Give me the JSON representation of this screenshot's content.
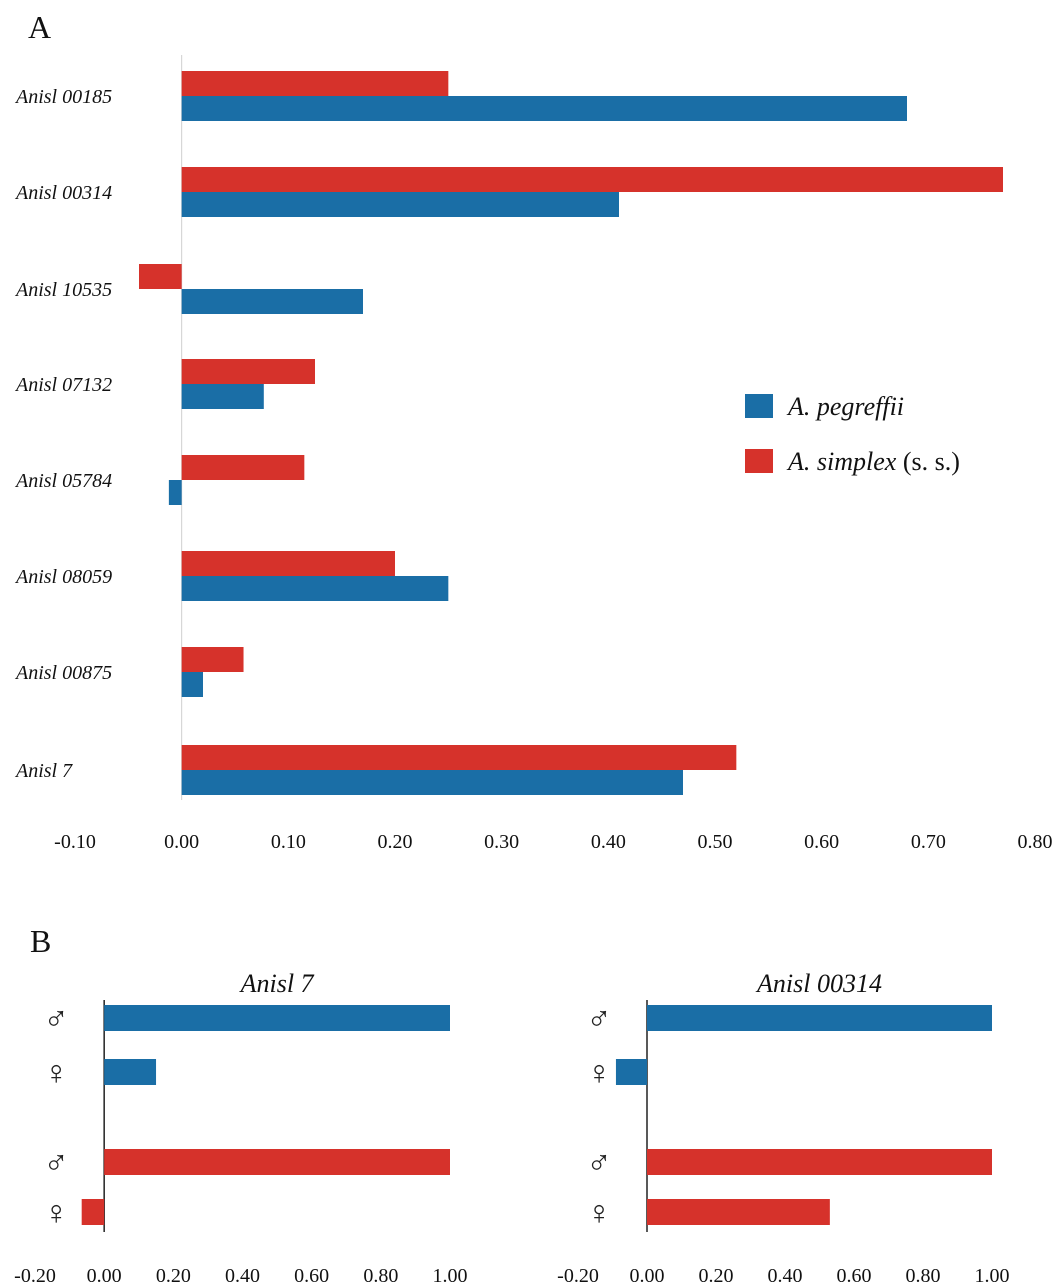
{
  "colors": {
    "pegreffii": "#1a6ea6",
    "simplex": "#d6322b",
    "axis": "#222222"
  },
  "panel_a_letter": "A",
  "panel_b_letter": "B",
  "legend": [
    {
      "series": "A. pegreffii",
      "italic": "A. pegreffii",
      "plain": "",
      "color": "#1a6ea6"
    },
    {
      "series": "A. simplex (s. s.)",
      "italic": "A. simplex",
      "plain": " (s. s.)",
      "color": "#d6322b"
    }
  ],
  "chart_data": [
    {
      "type": "bar",
      "orientation": "horizontal",
      "panel": "A",
      "categories": [
        "Anisl 00185",
        "Anisl 00314",
        "Anisl 10535",
        "Anisl 07132",
        "Anisl 05784",
        "Anisl 08059",
        "Anisl 00875",
        "Anisl 7"
      ],
      "series": [
        {
          "name": "A. simplex (s. s.)",
          "values": [
            0.25,
            0.77,
            -0.04,
            0.125,
            0.115,
            0.2,
            0.058,
            0.52
          ]
        },
        {
          "name": "A. pegreffii",
          "values": [
            0.68,
            0.41,
            0.17,
            0.077,
            -0.012,
            0.25,
            0.02,
            0.47
          ]
        }
      ],
      "xlim": [
        -0.1,
        0.8
      ],
      "xticks": [
        "-0.10",
        "0.00",
        "0.10",
        "0.20",
        "0.30",
        "0.40",
        "0.50",
        "0.60",
        "0.70",
        "0.80"
      ],
      "xtick_values": [
        -0.1,
        0,
        0.1,
        0.2,
        0.3,
        0.4,
        0.5,
        0.6,
        0.7,
        0.8
      ],
      "legend_position": "right"
    },
    {
      "type": "bar",
      "orientation": "horizontal",
      "panel": "B-left",
      "title": "Anisl 7",
      "categories": [
        "♂",
        "♀",
        "♂",
        "♀"
      ],
      "values": [
        1.0,
        0.15,
        1.0,
        -0.065
      ],
      "series_of_bar": [
        "A. pegreffii",
        "A. pegreffii",
        "A. simplex (s. s.)",
        "A. simplex (s. s.)"
      ],
      "xlim": [
        -0.2,
        1.0
      ],
      "xticks": [
        "-0.20",
        "0.00",
        "0.20",
        "0.40",
        "0.60",
        "0.80",
        "1.00"
      ],
      "xtick_values": [
        -0.2,
        0,
        0.2,
        0.4,
        0.6,
        0.8,
        1.0
      ]
    },
    {
      "type": "bar",
      "orientation": "horizontal",
      "panel": "B-right",
      "title": "Anisl 00314",
      "categories": [
        "♂",
        "♀",
        "♂",
        "♀"
      ],
      "values": [
        1.0,
        -0.09,
        1.0,
        0.53
      ],
      "series_of_bar": [
        "A. pegreffii",
        "A. pegreffii",
        "A. simplex (s. s.)",
        "A. simplex (s. s.)"
      ],
      "xlim": [
        -0.2,
        1.0
      ],
      "xticks": [
        "-0.20",
        "0.00",
        "0.20",
        "0.40",
        "0.60",
        "0.80",
        "1.00"
      ],
      "xtick_values": [
        -0.2,
        0,
        0.2,
        0.4,
        0.6,
        0.8,
        1.0
      ]
    }
  ]
}
